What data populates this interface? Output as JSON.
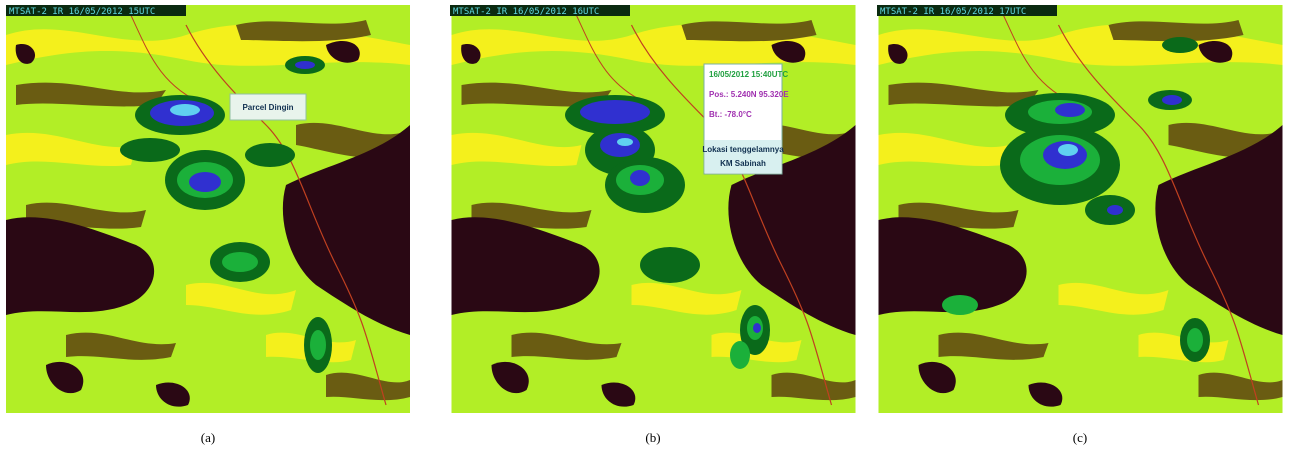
{
  "panels": [
    {
      "header": "MTSAT-2 IR 16/05/2012 15UTC",
      "annotation": [
        "Parcel Dingin"
      ],
      "caption": "(a)"
    },
    {
      "header": "MTSAT-2 IR 16/05/2012 16UTC",
      "annotation": [
        "16/05/2012 15:40UTC",
        "Pos.: 5.240N 95.320E",
        "Bt.: -78.0°C",
        "Lokasi tenggelamnya",
        "KM Sabinah"
      ],
      "caption": "(b)"
    },
    {
      "header": "MTSAT-2 IR 16/05/2012 17UTC",
      "annotation": [],
      "caption": "(c)"
    }
  ]
}
